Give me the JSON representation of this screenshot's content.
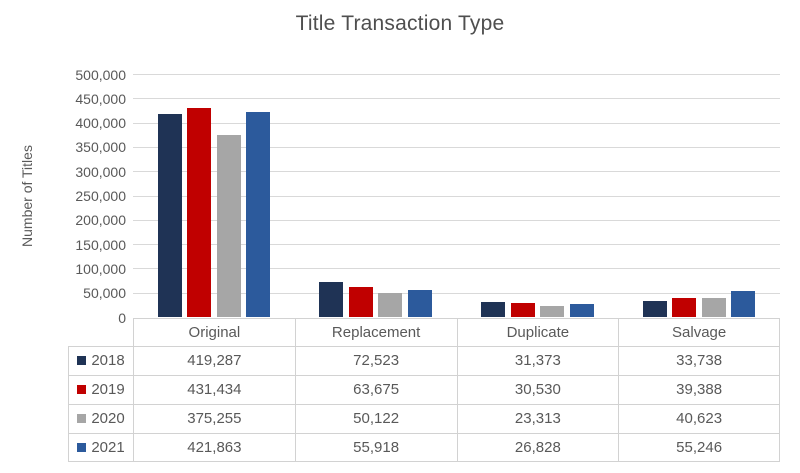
{
  "chart_data": {
    "type": "bar",
    "title": "Title Transaction Type",
    "xlabel": "",
    "ylabel": "Number of Titles",
    "categories": [
      "Original",
      "Replacement",
      "Duplicate",
      "Salvage"
    ],
    "series": [
      {
        "name": "2018",
        "color": "#1F3355",
        "values": [
          419287,
          72523,
          31373,
          33738
        ]
      },
      {
        "name": "2019",
        "color": "#C00000",
        "values": [
          431434,
          63675,
          30530,
          39388
        ]
      },
      {
        "name": "2020",
        "color": "#A6A6A6",
        "values": [
          375255,
          50122,
          23313,
          40623
        ]
      },
      {
        "name": "2021",
        "color": "#2C5A9C",
        "values": [
          421863,
          55918,
          26828,
          55246
        ]
      }
    ],
    "ylim": [
      0,
      500000
    ],
    "ytick_step": 50000,
    "ytick_labels": [
      "0",
      "50,000",
      "100,000",
      "150,000",
      "200,000",
      "250,000",
      "300,000",
      "350,000",
      "400,000",
      "450,000",
      "500,000"
    ],
    "grid": true,
    "legend_position": "data-table-left-column",
    "data_table": true,
    "number_format": "thousands-comma"
  },
  "colors": {
    "gridline": "#D9D9D9",
    "table_border": "#D2D2D2",
    "text": "#595959",
    "title_text": "#4F4F4F",
    "background": "#FFFFFF"
  }
}
